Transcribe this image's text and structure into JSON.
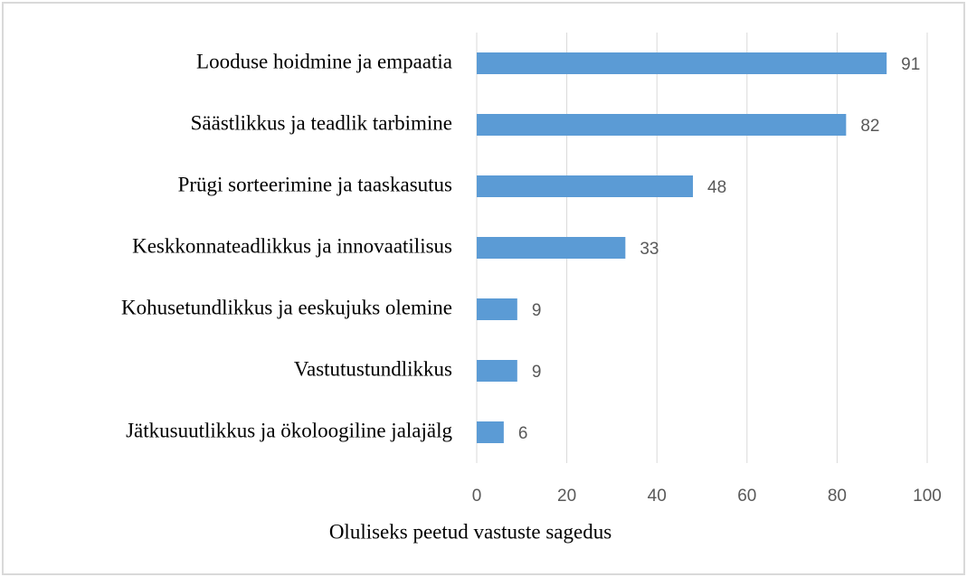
{
  "chart_data": {
    "type": "bar",
    "orientation": "horizontal",
    "categories": [
      "Looduse hoidmine ja empaatia",
      "Säästlikkus ja teadlik tarbimine",
      "Prügi sorteerimine ja taaskasutus",
      "Keskkonnateadlikkus ja innovaatilisus",
      "Kohusetundlikkus ja eeskujuks olemine",
      "Vastutustundlikkus",
      "Jätkusuutlikkus ja ökoloogiline jalajälg"
    ],
    "values": [
      91,
      82,
      48,
      33,
      9,
      9,
      6
    ],
    "color": "#5b9bd5",
    "xlabel": "Oluliseks peetud vastuste sagedus",
    "xlim": [
      0,
      100
    ],
    "xticks": [
      0,
      20,
      40,
      60,
      80,
      100
    ],
    "grid": true
  }
}
